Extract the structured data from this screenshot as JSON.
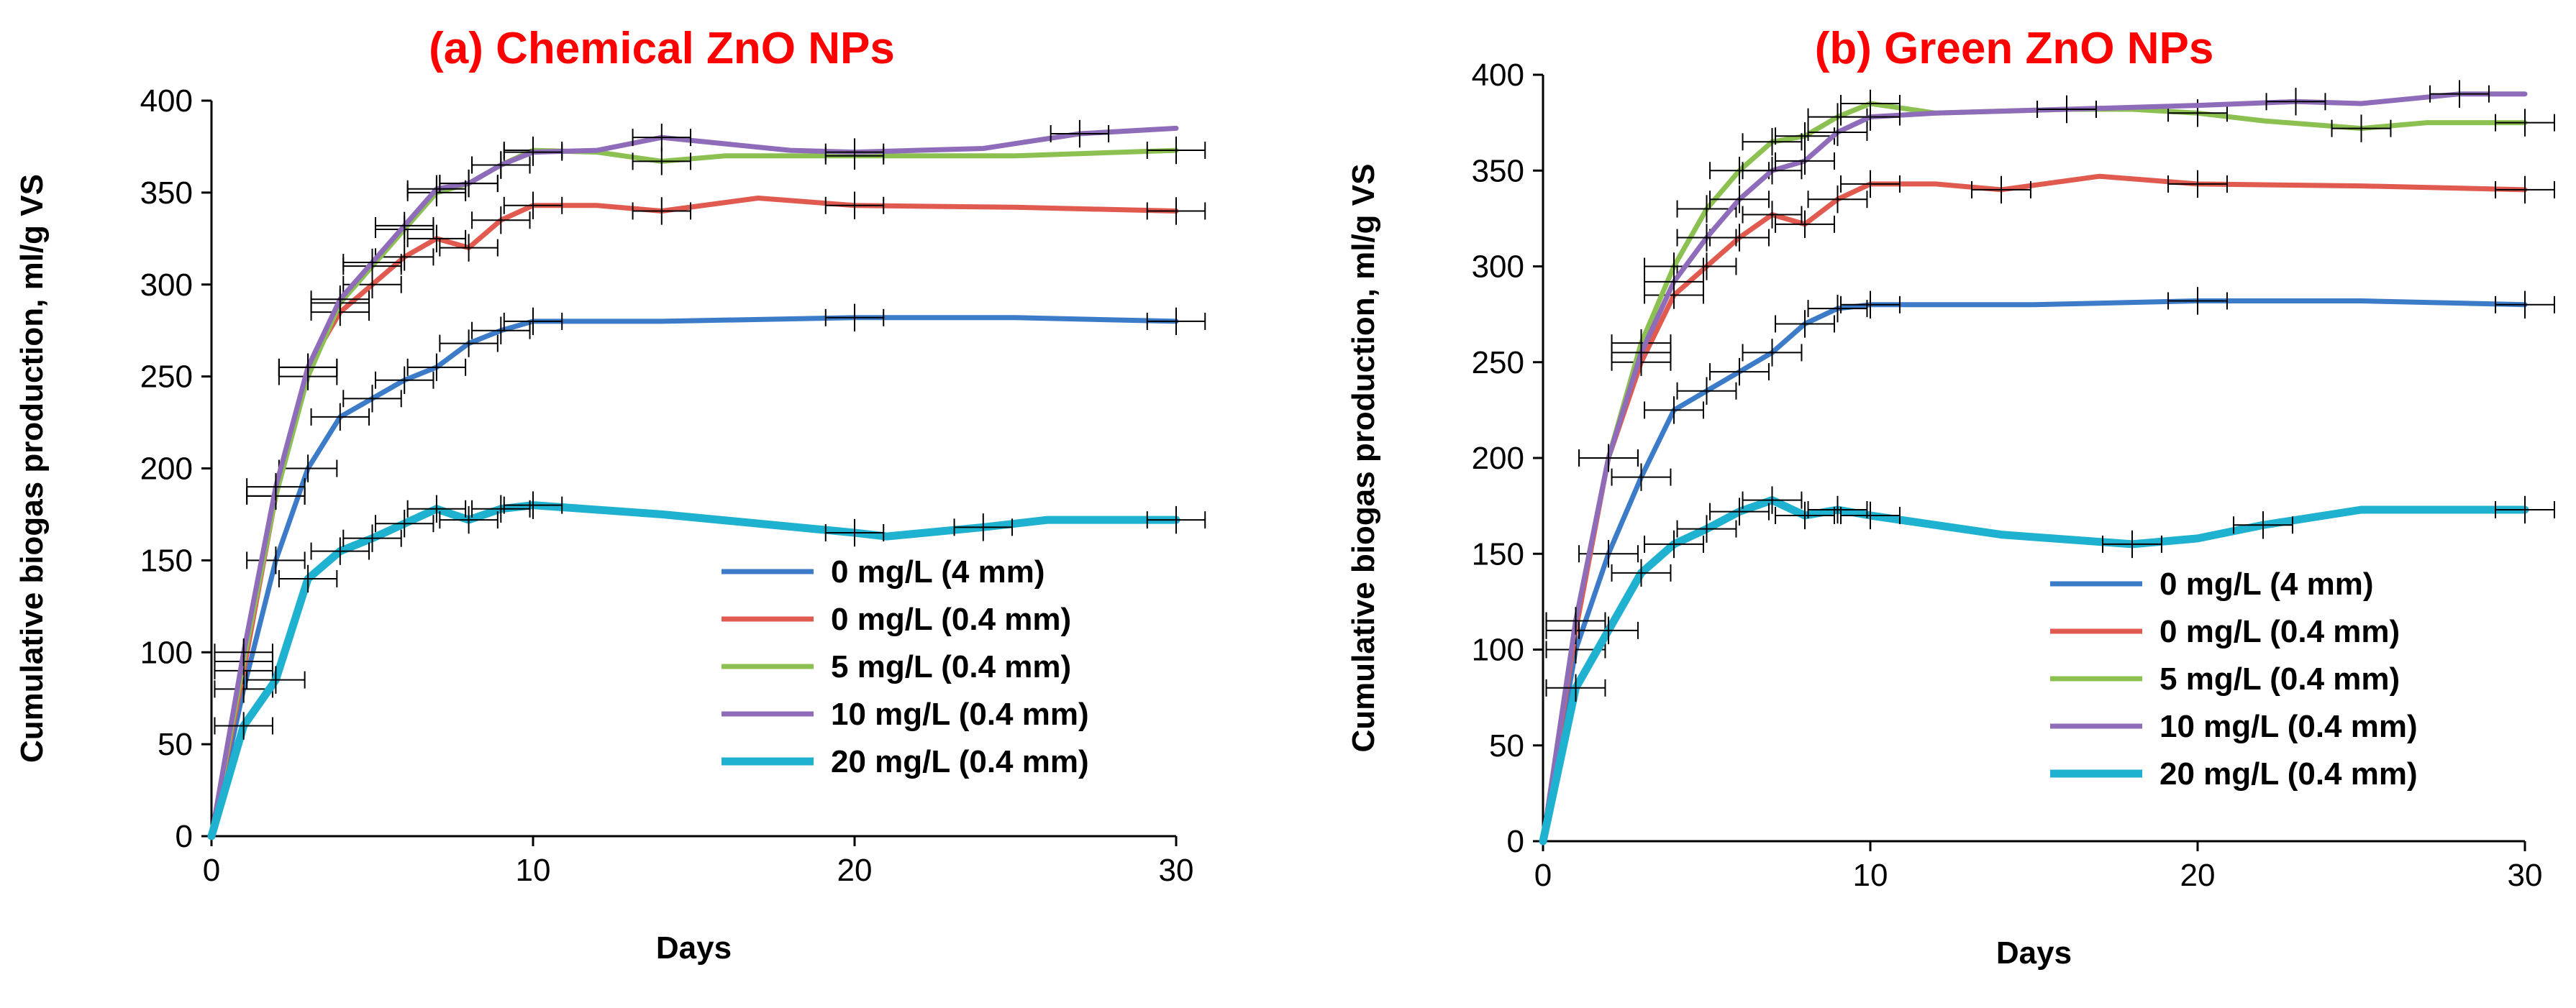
{
  "chart_data": [
    {
      "type": "line",
      "title": "(a) Chemical ZnO NPs",
      "title_color": "#ff0000",
      "xlabel": "Days",
      "ylabel": "Cumulative biogas production, ml/g VS",
      "xlim": [
        0,
        30
      ],
      "ylim": [
        0,
        400
      ],
      "xticks": [
        "0",
        "10",
        "20",
        "30"
      ],
      "yticks": [
        "0",
        "50",
        "100",
        "150",
        "200",
        "250",
        "300",
        "350",
        "400"
      ],
      "legend_position": "bottom-right",
      "series": [
        {
          "name": "0 mg/L (4 mm)",
          "color": "#3b7bc8",
          "width": 7,
          "points": [
            [
              0,
              0
            ],
            [
              1,
              80
            ],
            [
              2,
              150
            ],
            [
              3,
              200
            ],
            [
              4,
              228
            ],
            [
              5,
              238
            ],
            [
              6,
              248
            ],
            [
              7,
              255
            ],
            [
              8,
              268
            ],
            [
              9,
              275
            ],
            [
              10,
              280
            ],
            [
              14,
              280
            ],
            [
              20,
              282
            ],
            [
              25,
              282
            ],
            [
              30,
              280
            ]
          ]
        },
        {
          "name": "0 mg/L (0.4 mm)",
          "color": "#e05a50",
          "width": 7,
          "points": [
            [
              0,
              0
            ],
            [
              1,
              90
            ],
            [
              2,
              185
            ],
            [
              3,
              255
            ],
            [
              4,
              285
            ],
            [
              5,
              300
            ],
            [
              6,
              315
            ],
            [
              7,
              325
            ],
            [
              8,
              320
            ],
            [
              9,
              335
            ],
            [
              10,
              343
            ],
            [
              12,
              343
            ],
            [
              14,
              340
            ],
            [
              17,
              347
            ],
            [
              20,
              343
            ],
            [
              25,
              342
            ],
            [
              30,
              340
            ]
          ]
        },
        {
          "name": "5 mg/L (0.4 mm)",
          "color": "#8cc152",
          "width": 7,
          "points": [
            [
              0,
              0
            ],
            [
              1,
              95
            ],
            [
              2,
              185
            ],
            [
              3,
              250
            ],
            [
              4,
              290
            ],
            [
              5,
              310
            ],
            [
              6,
              330
            ],
            [
              7,
              350
            ],
            [
              8,
              355
            ],
            [
              9,
              365
            ],
            [
              10,
              373
            ],
            [
              12,
              372
            ],
            [
              14,
              367
            ],
            [
              16,
              370
            ],
            [
              20,
              370
            ],
            [
              25,
              370
            ],
            [
              30,
              373
            ]
          ]
        },
        {
          "name": "10 mg/L (0.4 mm)",
          "color": "#8e6cb9",
          "width": 7,
          "points": [
            [
              0,
              0
            ],
            [
              1,
              100
            ],
            [
              2,
              190
            ],
            [
              3,
              255
            ],
            [
              4,
              292
            ],
            [
              5,
              312
            ],
            [
              6,
              332
            ],
            [
              7,
              352
            ],
            [
              8,
              355
            ],
            [
              9,
              365
            ],
            [
              10,
              372
            ],
            [
              12,
              373
            ],
            [
              14,
              380
            ],
            [
              18,
              373
            ],
            [
              20,
              372
            ],
            [
              24,
              374
            ],
            [
              27,
              382
            ],
            [
              30,
              385
            ]
          ]
        },
        {
          "name": "20 mg/L (0.4 mm)",
          "color": "#1fb1d0",
          "width": 11,
          "points": [
            [
              0,
              0
            ],
            [
              1,
              60
            ],
            [
              2,
              85
            ],
            [
              3,
              140
            ],
            [
              4,
              155
            ],
            [
              5,
              162
            ],
            [
              6,
              170
            ],
            [
              7,
              178
            ],
            [
              8,
              172
            ],
            [
              9,
              178
            ],
            [
              10,
              180
            ],
            [
              14,
              175
            ],
            [
              20,
              165
            ],
            [
              21,
              163
            ],
            [
              24,
              168
            ],
            [
              26,
              172
            ],
            [
              30,
              172
            ]
          ]
        }
      ]
    },
    {
      "type": "line",
      "title": "(b) Green ZnO NPs",
      "title_color": "#ff0000",
      "xlabel": "Days",
      "ylabel": "Cumulative biogas production, ml/g VS",
      "xlim": [
        0,
        30
      ],
      "ylim": [
        0,
        400
      ],
      "xticks": [
        "0",
        "10",
        "20",
        "30"
      ],
      "yticks": [
        "0",
        "50",
        "100",
        "150",
        "200",
        "250",
        "300",
        "350",
        "400"
      ],
      "legend_position": "bottom-right",
      "series": [
        {
          "name": "0 mg/L (4 mm)",
          "color": "#3b7bc8",
          "width": 7,
          "points": [
            [
              0,
              0
            ],
            [
              1,
              100
            ],
            [
              2,
              150
            ],
            [
              3,
              190
            ],
            [
              4,
              225
            ],
            [
              5,
              235
            ],
            [
              6,
              245
            ],
            [
              7,
              255
            ],
            [
              8,
              270
            ],
            [
              9,
              278
            ],
            [
              10,
              280
            ],
            [
              15,
              280
            ],
            [
              20,
              282
            ],
            [
              25,
              282
            ],
            [
              30,
              280
            ]
          ]
        },
        {
          "name": "0 mg/L (0.4 mm)",
          "color": "#e05a50",
          "width": 7,
          "points": [
            [
              0,
              0
            ],
            [
              1,
              110
            ],
            [
              2,
              200
            ],
            [
              3,
              250
            ],
            [
              4,
              285
            ],
            [
              5,
              300
            ],
            [
              6,
              315
            ],
            [
              7,
              327
            ],
            [
              8,
              322
            ],
            [
              9,
              335
            ],
            [
              10,
              343
            ],
            [
              12,
              343
            ],
            [
              14,
              340
            ],
            [
              17,
              347
            ],
            [
              20,
              343
            ],
            [
              25,
              342
            ],
            [
              30,
              340
            ]
          ]
        },
        {
          "name": "5 mg/L (0.4 mm)",
          "color": "#8cc152",
          "width": 7,
          "points": [
            [
              0,
              0
            ],
            [
              1,
              115
            ],
            [
              2,
              200
            ],
            [
              3,
              260
            ],
            [
              4,
              300
            ],
            [
              5,
              330
            ],
            [
              6,
              350
            ],
            [
              7,
              365
            ],
            [
              8,
              368
            ],
            [
              9,
              378
            ],
            [
              10,
              385
            ],
            [
              12,
              380
            ],
            [
              16,
              382
            ],
            [
              18,
              382
            ],
            [
              20,
              380
            ],
            [
              22,
              376
            ],
            [
              25,
              372
            ],
            [
              27,
              375
            ],
            [
              30,
              375
            ]
          ]
        },
        {
          "name": "10 mg/L (0.4 mm)",
          "color": "#8e6cb9",
          "width": 7,
          "points": [
            [
              0,
              0
            ],
            [
              1,
              115
            ],
            [
              2,
              200
            ],
            [
              3,
              255
            ],
            [
              4,
              292
            ],
            [
              5,
              315
            ],
            [
              6,
              335
            ],
            [
              7,
              350
            ],
            [
              8,
              355
            ],
            [
              9,
              370
            ],
            [
              10,
              378
            ],
            [
              12,
              380
            ],
            [
              16,
              382
            ],
            [
              20,
              384
            ],
            [
              23,
              386
            ],
            [
              25,
              385
            ],
            [
              28,
              390
            ],
            [
              30,
              390
            ]
          ]
        },
        {
          "name": "20 mg/L (0.4 mm)",
          "color": "#1fb1d0",
          "width": 11,
          "points": [
            [
              0,
              0
            ],
            [
              1,
              80
            ],
            [
              2,
              110
            ],
            [
              3,
              140
            ],
            [
              4,
              155
            ],
            [
              5,
              163
            ],
            [
              6,
              172
            ],
            [
              7,
              178
            ],
            [
              8,
              170
            ],
            [
              9,
              173
            ],
            [
              10,
              170
            ],
            [
              14,
              160
            ],
            [
              18,
              155
            ],
            [
              20,
              158
            ],
            [
              22,
              165
            ],
            [
              25,
              173
            ],
            [
              30,
              173
            ]
          ]
        }
      ]
    }
  ]
}
